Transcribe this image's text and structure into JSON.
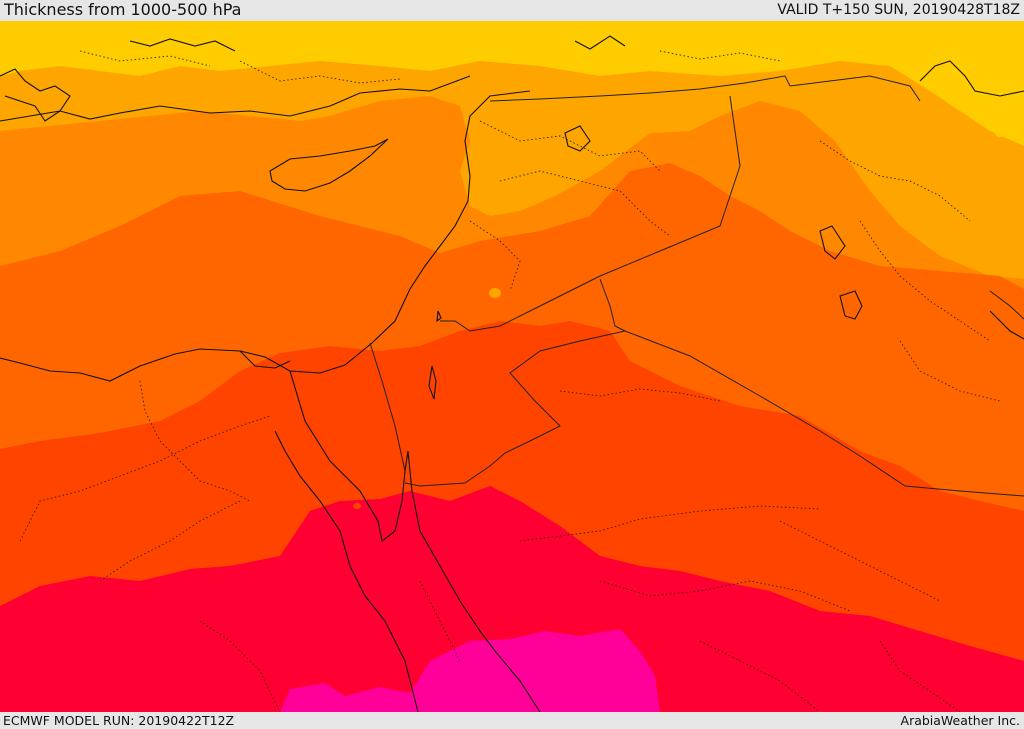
{
  "header": {
    "title": "Thickness from 1000-500 hPa",
    "valid_time": "VALID T+150 SUN, 20190428T18Z"
  },
  "footer": {
    "model_run": "ECMWF MODEL RUN: 20190422T12Z",
    "credit": "ArabiaWeather Inc."
  },
  "map": {
    "field": "1000-500 hPa thickness",
    "colors": {
      "band_1": "#FFCC00",
      "band_2": "#FFA500",
      "band_3": "#FF8800",
      "band_4": "#FF6600",
      "band_5": "#FF4400",
      "band_6": "#FF0033",
      "band_7": "#FF0099",
      "coastline": "#111111",
      "borders": "#222222"
    }
  }
}
